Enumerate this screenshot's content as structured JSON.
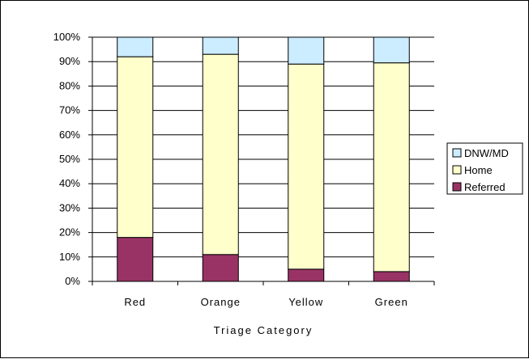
{
  "chart_data": {
    "type": "bar",
    "stacked": true,
    "categories": [
      "Red",
      "Orange",
      "Yellow",
      "Green"
    ],
    "series": [
      {
        "name": "Referred",
        "values": [
          18,
          11,
          5,
          4
        ],
        "color": "#993366"
      },
      {
        "name": "Home",
        "values": [
          74,
          82,
          84,
          85.5
        ],
        "color": "#ffffcc"
      },
      {
        "name": "DNW/MD",
        "values": [
          8,
          7,
          11,
          10.5
        ],
        "color": "#ccecff"
      }
    ],
    "y_ticks": [
      "0%",
      "10%",
      "20%",
      "30%",
      "40%",
      "50%",
      "60%",
      "70%",
      "80%",
      "90%",
      "100%"
    ],
    "title": "",
    "xlabel": "Triage Category",
    "ylabel": "",
    "ylim": [
      0,
      100
    ],
    "grid": true,
    "legend_position": "right",
    "legend_order": [
      "DNW/MD",
      "Home",
      "Referred"
    ]
  }
}
